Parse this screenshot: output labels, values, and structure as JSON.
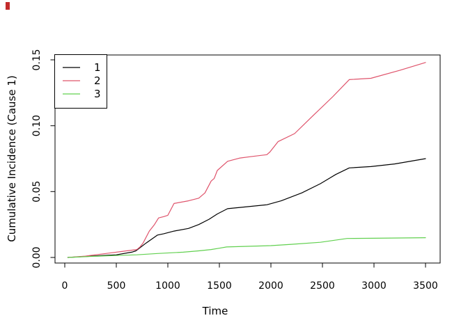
{
  "marker_color": "#c32b2b",
  "chart_data": {
    "type": "line",
    "title": "",
    "xlabel": "Time",
    "ylabel": "Cumulative Incidence (Cause 1)",
    "xlim": [
      -95,
      3642
    ],
    "ylim": [
      -0.0042,
      0.1537
    ],
    "x_ticks": [
      0,
      500,
      1000,
      1500,
      2000,
      2500,
      3000,
      3500
    ],
    "y_ticks": [
      0,
      0.05,
      0.1,
      0.15
    ],
    "y_tick_labels": [
      "0.00",
      "0.05",
      "0.10",
      "0.15"
    ],
    "grid": false,
    "legend": {
      "position": "top-left",
      "entries": [
        "1",
        "2",
        "3"
      ]
    },
    "series": [
      {
        "name": "1",
        "color": "#000000",
        "x": [
          30,
          250,
          500,
          650,
          690,
          790,
          900,
          960,
          1060,
          1200,
          1300,
          1400,
          1480,
          1580,
          1700,
          1960,
          2100,
          2300,
          2480,
          2630,
          2760,
          2970,
          3200,
          3500
        ],
        "y": [
          0.0,
          0.001,
          0.002,
          0.004,
          0.005,
          0.011,
          0.017,
          0.018,
          0.02,
          0.022,
          0.025,
          0.029,
          0.033,
          0.037,
          0.038,
          0.04,
          0.043,
          0.049,
          0.056,
          0.063,
          0.068,
          0.069,
          0.071,
          0.075
        ]
      },
      {
        "name": "2",
        "color": "#DF536B",
        "x": [
          30,
          200,
          400,
          600,
          700,
          730,
          760,
          820,
          870,
          910,
          960,
          1000,
          1060,
          1200,
          1300,
          1360,
          1420,
          1450,
          1480,
          1580,
          1700,
          1800,
          1960,
          1990,
          2070,
          2230,
          2400,
          2600,
          2760,
          2970,
          3250,
          3500
        ],
        "y": [
          0.0,
          0.001,
          0.003,
          0.005,
          0.006,
          0.008,
          0.011,
          0.02,
          0.025,
          0.03,
          0.031,
          0.032,
          0.041,
          0.043,
          0.045,
          0.049,
          0.058,
          0.06,
          0.066,
          0.073,
          0.0755,
          0.0765,
          0.078,
          0.08,
          0.088,
          0.094,
          0.107,
          0.122,
          0.135,
          0.136,
          0.142,
          0.148
        ]
      },
      {
        "name": "3",
        "color": "#61D04F",
        "x": [
          30,
          250,
          500,
          700,
          900,
          1150,
          1300,
          1420,
          1500,
          1570,
          1800,
          2000,
          2200,
          2480,
          2740,
          3000,
          3500
        ],
        "y": [
          0.0,
          0.0008,
          0.0015,
          0.002,
          0.003,
          0.004,
          0.005,
          0.006,
          0.007,
          0.008,
          0.0085,
          0.009,
          0.01,
          0.0115,
          0.0144,
          0.0146,
          0.015
        ]
      }
    ]
  }
}
